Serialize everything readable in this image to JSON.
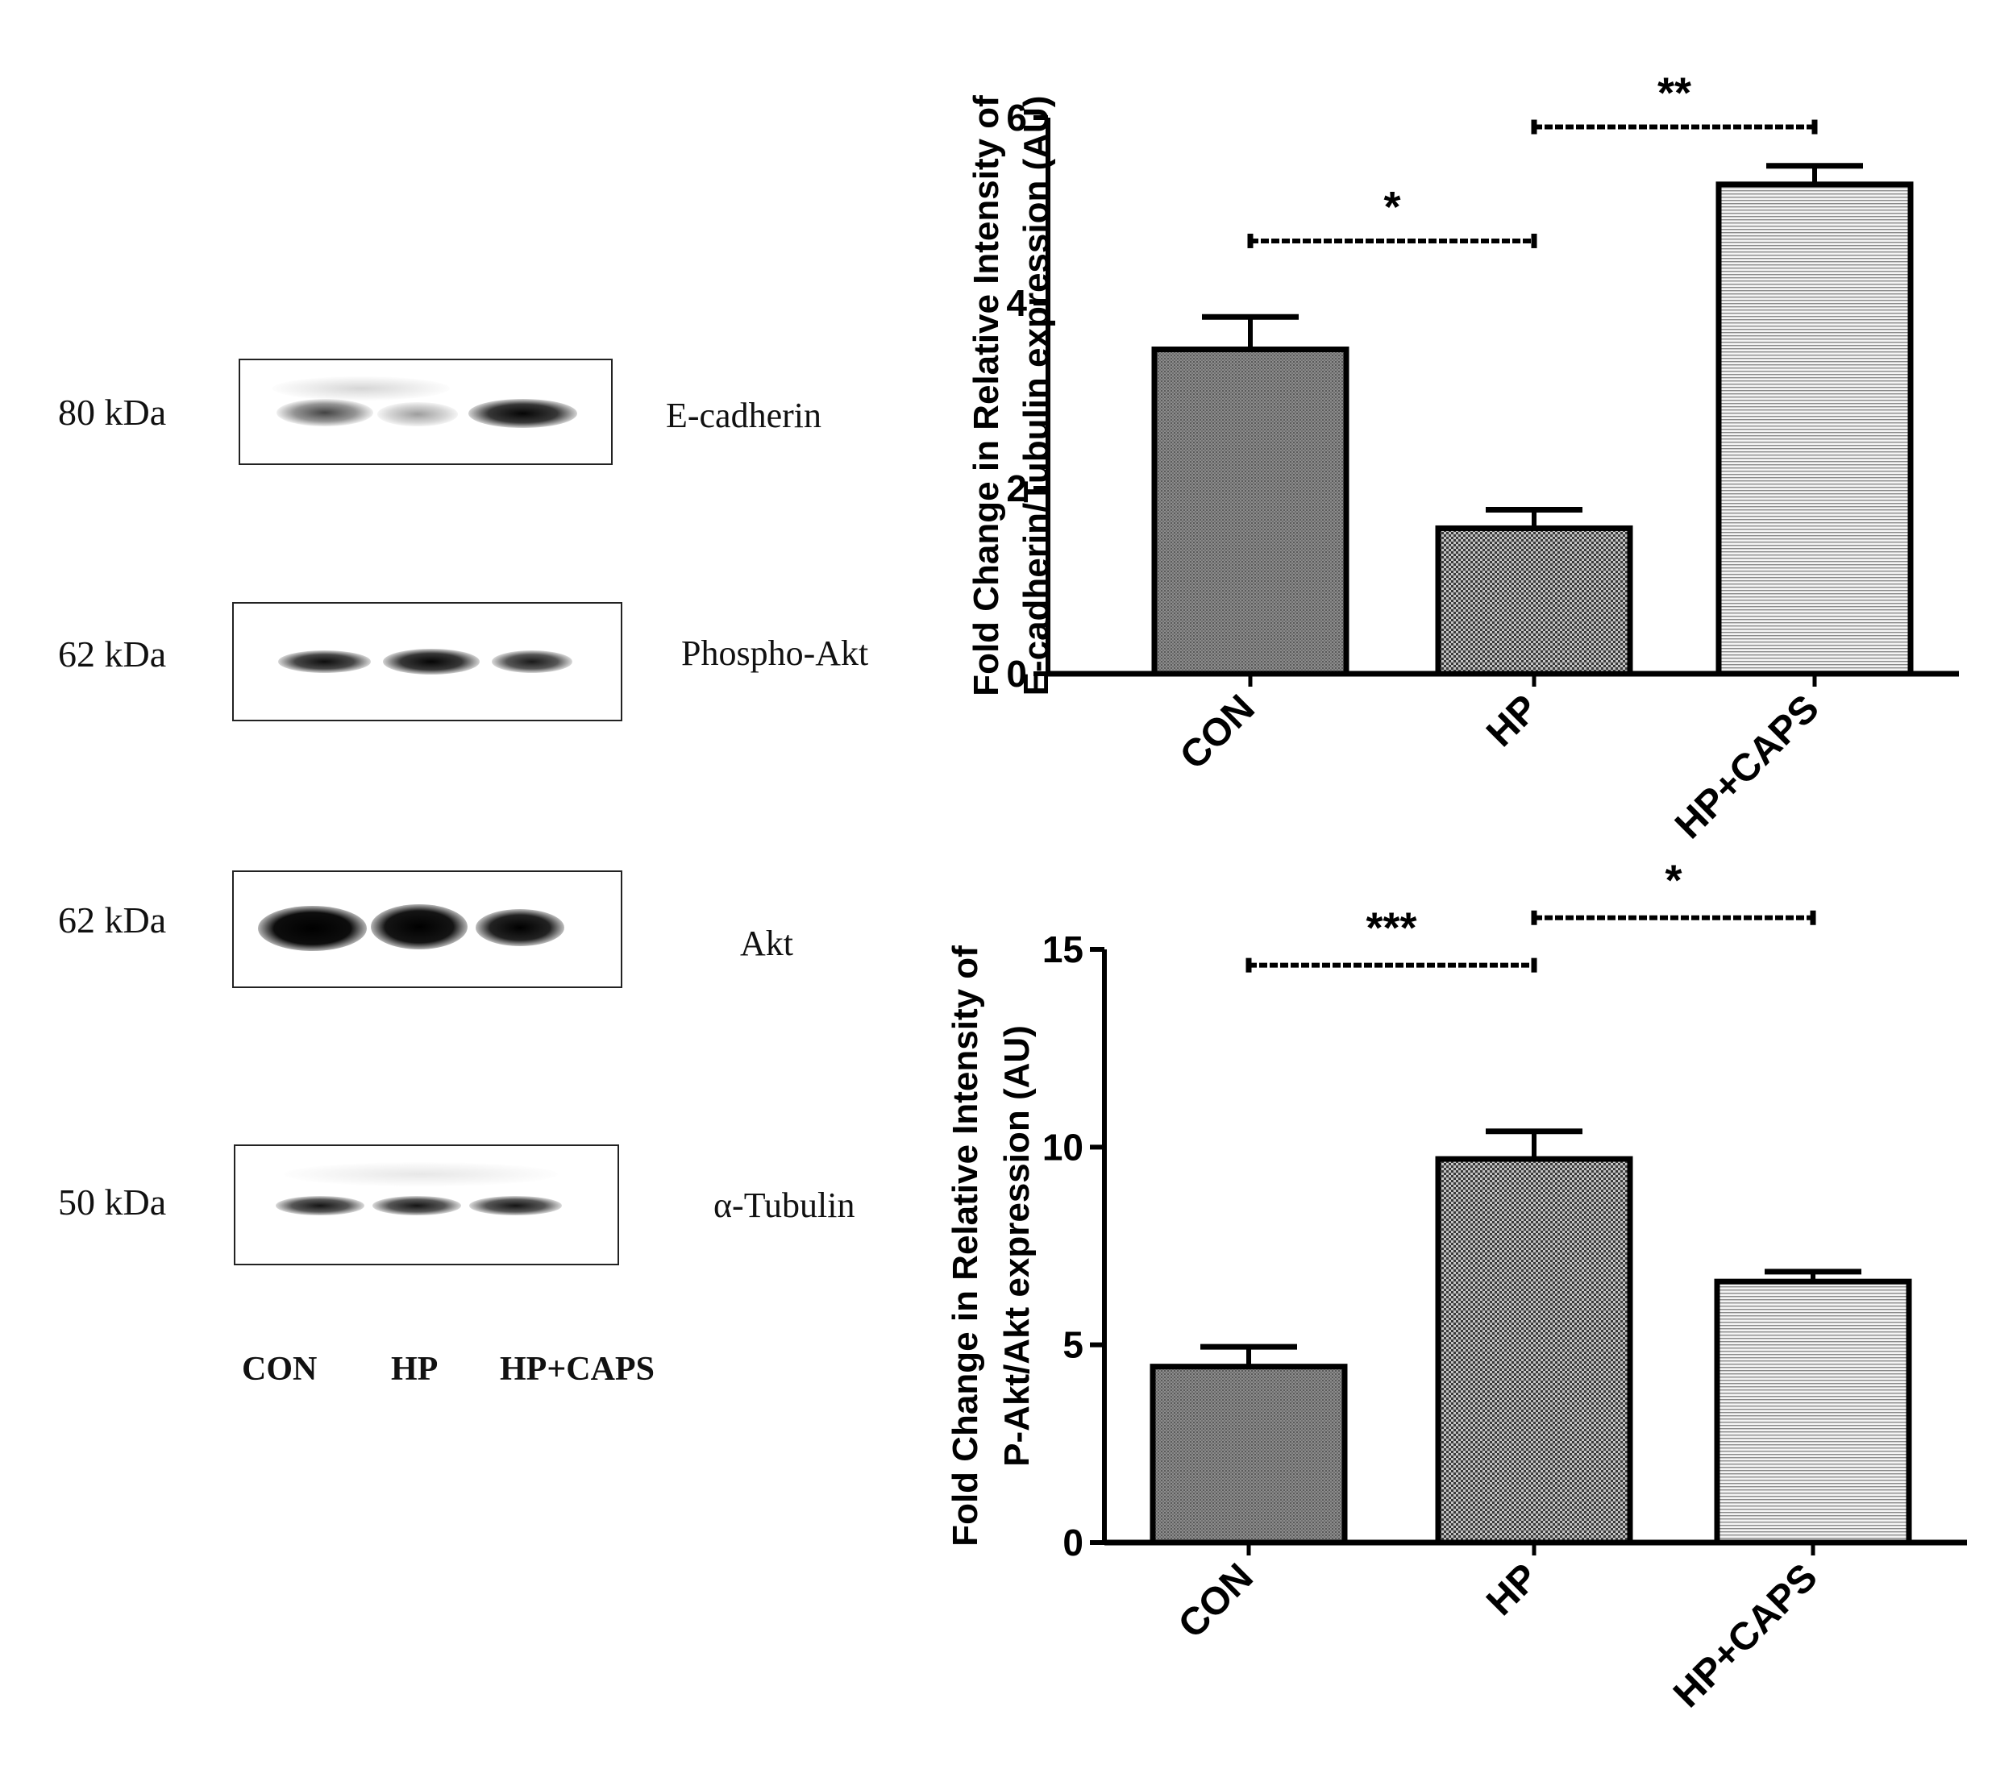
{
  "western_blot": {
    "rows": [
      {
        "kda": "80 kDa",
        "protein": "E-cadherin",
        "band_intensity": [
          0.65,
          0.35,
          0.95
        ]
      },
      {
        "kda": "62 kDa",
        "protein": "Phospho-Akt",
        "band_intensity": [
          0.9,
          0.95,
          0.85
        ]
      },
      {
        "kda": "62 kDa",
        "protein": "Akt",
        "band_intensity": [
          1.0,
          0.98,
          0.92
        ]
      },
      {
        "kda": "50 kDa",
        "protein": "α-Tubulin",
        "band_intensity": [
          0.85,
          0.85,
          0.85
        ]
      }
    ],
    "lanes": [
      "CON",
      "HP",
      "HP+CAPS"
    ]
  },
  "chart_data": [
    {
      "type": "bar",
      "categories": [
        "CON",
        "HP",
        "HP+CAPS"
      ],
      "values": [
        3.5,
        1.57,
        5.28
      ],
      "errors": [
        0.35,
        0.2,
        0.2
      ],
      "ylabel_line1": "Fold Change in Relative Intensity of",
      "ylabel_line2": "E-cadherin/Tubulin expression (AU)",
      "ylim": [
        0,
        6
      ],
      "yticks": [
        0,
        2,
        4,
        6
      ],
      "patterns": [
        "dots-dense",
        "checker",
        "hlines"
      ],
      "significance": [
        {
          "from": "CON",
          "to": "HP",
          "label": "*",
          "y": 4.67
        },
        {
          "from": "HP",
          "to": "HP+CAPS",
          "label": "**",
          "y": 5.9
        }
      ]
    },
    {
      "type": "bar",
      "categories": [
        "CON",
        "HP",
        "HP+CAPS"
      ],
      "values": [
        4.45,
        9.7,
        6.6
      ],
      "errors": [
        0.5,
        0.7,
        0.25
      ],
      "ylabel_line1": "Fold Change in Relative Intensity of",
      "ylabel_line2": "P-Akt/Akt expression (AU)",
      "ylim": [
        0,
        15
      ],
      "yticks": [
        0,
        5,
        10,
        15
      ],
      "patterns": [
        "dots-dense",
        "checker",
        "hlines"
      ],
      "significance": [
        {
          "from": "CON",
          "to": "HP",
          "label": "***",
          "y": 14.6
        },
        {
          "from": "HP",
          "to": "HP+CAPS",
          "label": "*",
          "y": 15.8
        }
      ]
    }
  ]
}
